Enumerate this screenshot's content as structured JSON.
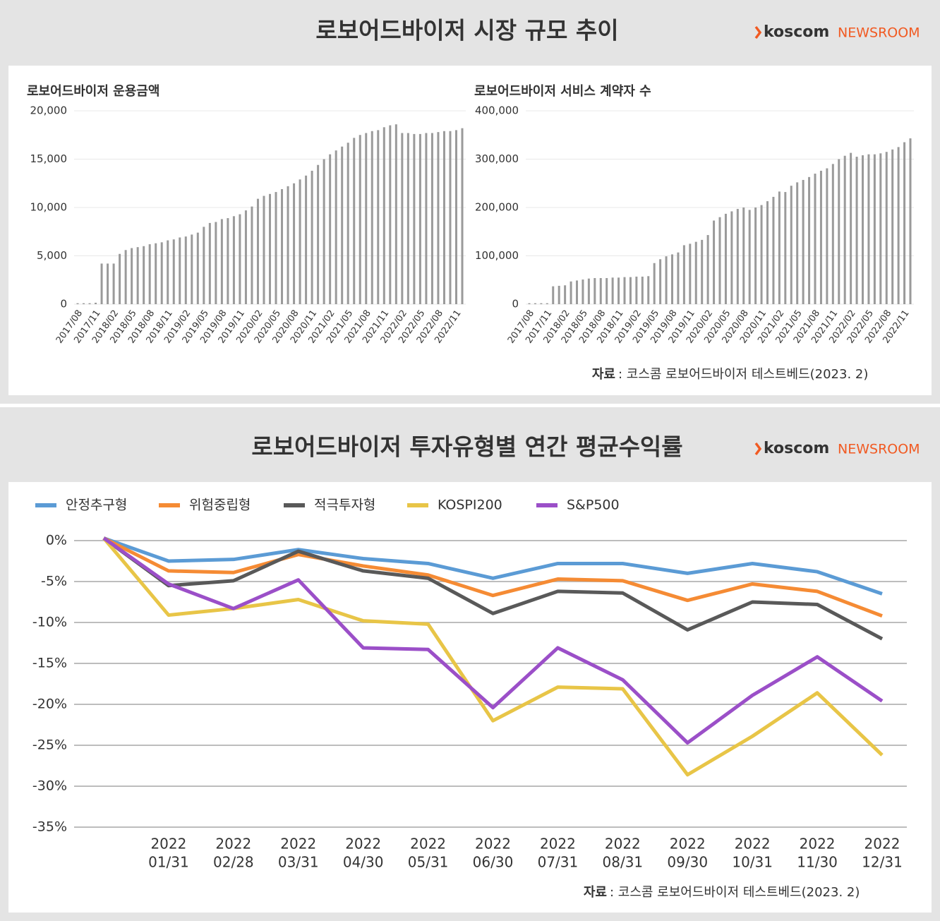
{
  "panels": [
    {
      "title": "로보어드바이저 시장 규모 추이",
      "logo_brand": "koscom",
      "logo_name": "NEWSROOM"
    },
    {
      "title": "로보어드바이저 투자유형별 연간 평균수익률",
      "logo_brand": "koscom",
      "logo_name": "NEWSROOM"
    }
  ],
  "chart_data": [
    {
      "type": "bar",
      "title": "로보어드바이저 운용금액",
      "color": "#9a9a9a",
      "grid": true,
      "categories": [
        "2017/08",
        null,
        null,
        "2017/11",
        null,
        null,
        "2018/02",
        null,
        null,
        "2018/05",
        null,
        null,
        "2018/08",
        null,
        null,
        "2018/11",
        null,
        null,
        "2019/02",
        null,
        null,
        "2019/05",
        null,
        null,
        "2019/08",
        null,
        null,
        "2019/11",
        null,
        null,
        "2020/02",
        null,
        null,
        "2020/05",
        null,
        null,
        "2020/08",
        null,
        null,
        "2020/11",
        null,
        null,
        "2021/02",
        null,
        null,
        "2021/05",
        null,
        null,
        "2021/08",
        null,
        null,
        "2021/11",
        null,
        null,
        "2022/02",
        null,
        null,
        "2022/05",
        null,
        null,
        "2022/08",
        null,
        null,
        "2022/11",
        null
      ],
      "values": [
        100,
        100,
        100,
        150,
        4200,
        4200,
        4200,
        5200,
        5600,
        5800,
        5900,
        6000,
        6200,
        6300,
        6400,
        6600,
        6700,
        6900,
        7000,
        7200,
        7400,
        8000,
        8400,
        8500,
        8800,
        8900,
        9100,
        9300,
        9700,
        10100,
        10900,
        11200,
        11400,
        11600,
        11900,
        12200,
        12500,
        12900,
        13300,
        13800,
        14400,
        15000,
        15500,
        15900,
        16300,
        16700,
        17200,
        17500,
        17700,
        17900,
        18000,
        18300,
        18500,
        18600,
        17700,
        17700,
        17600,
        17600,
        17700,
        17700,
        17800,
        17900,
        17900,
        18000,
        18200
      ],
      "ylim": [
        0,
        20000
      ],
      "yticks": [
        0,
        {
          "value": 5000,
          "label": "5,000"
        },
        {
          "value": 10000,
          "label": "10,000"
        },
        {
          "value": 15000,
          "label": "15,000"
        },
        {
          "value": 20000,
          "label": "20,000"
        }
      ]
    },
    {
      "type": "bar",
      "title": "로보어드바이저 서비스 계약자 수",
      "color": "#9a9a9a",
      "grid": true,
      "categories": [
        "2017/08",
        null,
        null,
        "2017/11",
        null,
        null,
        "2018/02",
        null,
        null,
        "2018/05",
        null,
        null,
        "2018/08",
        null,
        null,
        "2018/11",
        null,
        null,
        "2019/02",
        null,
        null,
        "2019/05",
        null,
        null,
        "2019/08",
        null,
        null,
        "2019/11",
        null,
        null,
        "2020/02",
        null,
        null,
        "2020/05",
        null,
        null,
        "2020/08",
        null,
        null,
        "2020/11",
        null,
        null,
        "2021/02",
        null,
        null,
        "2021/05",
        null,
        null,
        "2021/08",
        null,
        null,
        "2021/11",
        null,
        null,
        "2022/02",
        null,
        null,
        "2022/05",
        null,
        null,
        "2022/08",
        null,
        null,
        "2022/11",
        null
      ],
      "values": [
        2000,
        2000,
        2000,
        2000,
        37000,
        38000,
        39000,
        47000,
        49000,
        51000,
        53000,
        54000,
        54000,
        54000,
        55000,
        55000,
        56000,
        56000,
        57000,
        57000,
        58000,
        85000,
        93000,
        99000,
        103000,
        107000,
        122000,
        125000,
        129000,
        133000,
        143000,
        173000,
        180000,
        187000,
        192000,
        197000,
        200000,
        195000,
        200000,
        205000,
        213000,
        222000,
        233000,
        232000,
        245000,
        252000,
        257000,
        263000,
        270000,
        276000,
        281000,
        290000,
        300000,
        307000,
        313000,
        305000,
        308000,
        310000,
        310000,
        312000,
        315000,
        320000,
        325000,
        335000,
        343000
      ],
      "ylim": [
        0,
        400000
      ],
      "yticks": [
        0,
        {
          "value": 100000,
          "label": "100,000"
        },
        {
          "value": 200000,
          "label": "200,000"
        },
        {
          "value": 300000,
          "label": "300,000"
        },
        {
          "value": 400000,
          "label": "400,000"
        }
      ],
      "source_label": "자료",
      "source": ": 코스콤 로보어드바이저 테스트베드(2023. 2)"
    },
    {
      "type": "line",
      "grid": true,
      "categories": [
        null,
        [
          "2022",
          "01/31"
        ],
        [
          "2022",
          "02/28"
        ],
        [
          "2022",
          "03/31"
        ],
        [
          "2022",
          "04/30"
        ],
        [
          "2022",
          "05/31"
        ],
        [
          "2022",
          "06/30"
        ],
        [
          "2022",
          "07/31"
        ],
        [
          "2022",
          "08/31"
        ],
        [
          "2022",
          "09/30"
        ],
        [
          "2022",
          "10/31"
        ],
        [
          "2022",
          "11/30"
        ],
        [
          "2022",
          "12/31"
        ]
      ],
      "series": [
        {
          "name": "안정추구형",
          "color": "#5b9bd5",
          "values": [
            0.3,
            -2.5,
            -2.3,
            -1.1,
            -2.2,
            -2.8,
            -4.6,
            -2.8,
            -2.8,
            -4.0,
            -2.8,
            -3.8,
            -6.5
          ]
        },
        {
          "name": "위험중립형",
          "color": "#f58b34",
          "values": [
            0.3,
            -3.7,
            -3.9,
            -1.7,
            -3.1,
            -4.2,
            -6.7,
            -4.7,
            -4.9,
            -7.3,
            -5.3,
            -6.2,
            -9.2
          ]
        },
        {
          "name": "적극투자형",
          "color": "#595959",
          "values": [
            0.3,
            -5.5,
            -4.9,
            -1.3,
            -3.7,
            -4.6,
            -8.9,
            -6.2,
            -6.4,
            -10.9,
            -7.5,
            -7.8,
            -12.0
          ]
        },
        {
          "name": "KOSPI200",
          "color": "#e8c547",
          "values": [
            0.3,
            -9.1,
            -8.3,
            -7.2,
            -9.8,
            -10.2,
            -22.0,
            -17.9,
            -18.1,
            -28.6,
            -23.9,
            -18.6,
            -26.2
          ]
        },
        {
          "name": "S&P500",
          "color": "#9b4fc8",
          "values": [
            0.3,
            -5.3,
            -8.3,
            -4.8,
            -13.1,
            -13.3,
            -20.4,
            -13.1,
            -17.0,
            -24.7,
            -18.9,
            -14.2,
            -19.6
          ]
        }
      ],
      "ylim": [
        -35,
        0
      ],
      "yticks": [
        {
          "value": 0,
          "label": "0%"
        },
        {
          "value": -5,
          "label": "-5%"
        },
        {
          "value": -10,
          "label": "-10%"
        },
        {
          "value": -15,
          "label": "-15%"
        },
        {
          "value": -20,
          "label": "-20%"
        },
        {
          "value": -25,
          "label": "-25%"
        },
        {
          "value": -30,
          "label": "-30%"
        },
        {
          "value": -35,
          "label": "-35%"
        }
      ],
      "source_label": "자료",
      "source": ": 코스콤 로보어드바이저 테스트베드(2023. 2)"
    }
  ]
}
